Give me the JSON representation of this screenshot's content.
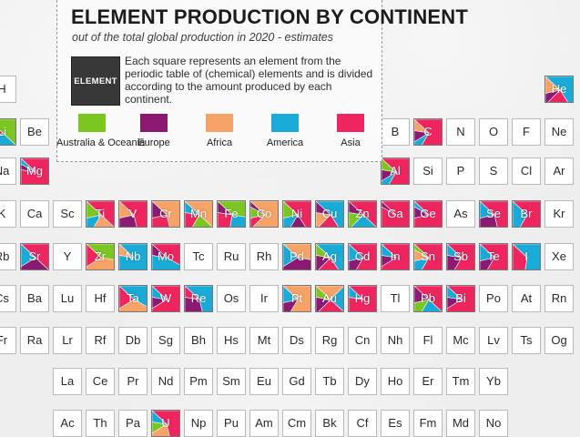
{
  "title": "ELEMENT PRODUCTION BY CONTINENT",
  "subtitle": "out of the total global production in 2020 - estimates",
  "legend": {
    "sample_label": "ELEMENT",
    "description": "Each square represents an element from the periodic table of (chemical) elements and is divided according to the amount produced by each continent.",
    "continents": [
      {
        "key": "oce",
        "name": "Australia & Oceania",
        "color": "#7bc621"
      },
      {
        "key": "eur",
        "name": "Europe",
        "color": "#8b1a73"
      },
      {
        "key": "afr",
        "name": "Africa",
        "color": "#f7a266"
      },
      {
        "key": "ame",
        "name": "America",
        "color": "#1aaad8"
      },
      {
        "key": "asi",
        "name": "Asia",
        "color": "#ef2560"
      }
    ]
  },
  "elements": [
    {
      "s": "H",
      "r": 1,
      "c": 1
    },
    {
      "s": "He",
      "r": 1,
      "c": 18,
      "shares": {
        "ame": 0.55,
        "asi": 0.2,
        "eur": 0.1,
        "afr": 0.15
      }
    },
    {
      "s": "Li",
      "r": 2,
      "c": 1,
      "shares": {
        "oce": 0.5,
        "ame": 0.3,
        "asi": 0.2
      }
    },
    {
      "s": "Be",
      "r": 2,
      "c": 2
    },
    {
      "s": "B",
      "r": 2,
      "c": 13
    },
    {
      "s": "C",
      "r": 2,
      "c": 14,
      "shares": {
        "asi": 0.7,
        "ame": 0.1,
        "eur": 0.1,
        "afr": 0.1
      }
    },
    {
      "s": "N",
      "r": 2,
      "c": 15
    },
    {
      "s": "O",
      "r": 2,
      "c": 16
    },
    {
      "s": "F",
      "r": 2,
      "c": 17
    },
    {
      "s": "Ne",
      "r": 2,
      "c": 18
    },
    {
      "s": "Na",
      "r": 3,
      "c": 1
    },
    {
      "s": "Mg",
      "r": 3,
      "c": 2,
      "shares": {
        "asi": 0.9,
        "eur": 0.05,
        "ame": 0.05
      }
    },
    {
      "s": "Al",
      "r": 3,
      "c": 13,
      "shares": {
        "asi": 0.7,
        "ame": 0.1,
        "eur": 0.1,
        "oce": 0.1
      }
    },
    {
      "s": "Si",
      "r": 3,
      "c": 14
    },
    {
      "s": "P",
      "r": 3,
      "c": 15
    },
    {
      "s": "S",
      "r": 3,
      "c": 16
    },
    {
      "s": "Cl",
      "r": 3,
      "c": 17
    },
    {
      "s": "Ar",
      "r": 3,
      "c": 18
    },
    {
      "s": "K",
      "r": 4,
      "c": 1
    },
    {
      "s": "Ca",
      "r": 4,
      "c": 2
    },
    {
      "s": "Sc",
      "r": 4,
      "c": 3
    },
    {
      "s": "Ti",
      "r": 4,
      "c": 4,
      "shares": {
        "asi": 0.5,
        "afr": 0.2,
        "ame": 0.15,
        "oce": 0.15
      }
    },
    {
      "s": "V",
      "r": 4,
      "c": 5,
      "shares": {
        "asi": 0.6,
        "eur": 0.25,
        "afr": 0.15
      }
    },
    {
      "s": "Cr",
      "r": 4,
      "c": 6,
      "shares": {
        "afr": 0.6,
        "asi": 0.25,
        "eur": 0.15
      }
    },
    {
      "s": "Mn",
      "r": 4,
      "c": 7,
      "shares": {
        "afr": 0.5,
        "oce": 0.2,
        "asi": 0.2,
        "ame": 0.1
      }
    },
    {
      "s": "Fe",
      "r": 4,
      "c": 8,
      "shares": {
        "oce": 0.4,
        "ame": 0.25,
        "asi": 0.25,
        "eur": 0.1
      }
    },
    {
      "s": "Co",
      "r": 4,
      "c": 9,
      "shares": {
        "afr": 0.75,
        "asi": 0.1,
        "oce": 0.1,
        "eur": 0.05
      }
    },
    {
      "s": "Ni",
      "r": 4,
      "c": 10,
      "shares": {
        "asi": 0.55,
        "eur": 0.15,
        "ame": 0.15,
        "oce": 0.15
      }
    },
    {
      "s": "Cu",
      "r": 4,
      "c": 11,
      "shares": {
        "ame": 0.55,
        "asi": 0.2,
        "afr": 0.15,
        "eur": 0.1
      }
    },
    {
      "s": "Zn",
      "r": 4,
      "c": 12,
      "shares": {
        "asi": 0.5,
        "ame": 0.25,
        "oce": 0.15,
        "eur": 0.1
      }
    },
    {
      "s": "Ga",
      "r": 4,
      "c": 13,
      "shares": {
        "asi": 0.95,
        "eur": 0.05
      }
    },
    {
      "s": "Ge",
      "r": 4,
      "c": 14,
      "shares": {
        "asi": 0.85,
        "eur": 0.1,
        "ame": 0.05
      }
    },
    {
      "s": "As",
      "r": 4,
      "c": 15
    },
    {
      "s": "Se",
      "r": 4,
      "c": 16,
      "shares": {
        "asi": 0.6,
        "eur": 0.25,
        "ame": 0.15
      }
    },
    {
      "s": "Br",
      "r": 4,
      "c": 17,
      "shares": {
        "asi": 0.7,
        "ame": 0.3
      }
    },
    {
      "s": "Kr",
      "r": 4,
      "c": 18
    },
    {
      "s": "Rb",
      "r": 5,
      "c": 1
    },
    {
      "s": "Sr",
      "r": 5,
      "c": 2,
      "shares": {
        "asi": 0.5,
        "eur": 0.3,
        "ame": 0.2
      }
    },
    {
      "s": "Y",
      "r": 5,
      "c": 3
    },
    {
      "s": "Zr",
      "r": 5,
      "c": 4,
      "shares": {
        "oce": 0.4,
        "afr": 0.4,
        "asi": 0.2
      }
    },
    {
      "s": "Nb",
      "r": 5,
      "c": 5,
      "shares": {
        "ame": 0.9,
        "afr": 0.1
      }
    },
    {
      "s": "Mo",
      "r": 5,
      "c": 6,
      "shares": {
        "asi": 0.45,
        "ame": 0.45,
        "eur": 0.1
      }
    },
    {
      "s": "Tc",
      "r": 5,
      "c": 7
    },
    {
      "s": "Ru",
      "r": 5,
      "c": 8
    },
    {
      "s": "Rh",
      "r": 5,
      "c": 9
    },
    {
      "s": "Pd",
      "r": 5,
      "c": 10,
      "shares": {
        "afr": 0.4,
        "eur": 0.4,
        "ame": 0.2
      }
    },
    {
      "s": "Ag",
      "r": 5,
      "c": 11,
      "shares": {
        "ame": 0.55,
        "asi": 0.2,
        "eur": 0.15,
        "oce": 0.1
      }
    },
    {
      "s": "Cd",
      "r": 5,
      "c": 12,
      "shares": {
        "asi": 0.7,
        "eur": 0.15,
        "ame": 0.15
      }
    },
    {
      "s": "In",
      "r": 5,
      "c": 13,
      "shares": {
        "asi": 0.8,
        "eur": 0.1,
        "ame": 0.1
      }
    },
    {
      "s": "Sn",
      "r": 5,
      "c": 14,
      "shares": {
        "asi": 0.7,
        "ame": 0.15,
        "afr": 0.1,
        "oce": 0.05
      }
    },
    {
      "s": "Sb",
      "r": 5,
      "c": 15,
      "shares": {
        "asi": 0.7,
        "eur": 0.2,
        "ame": 0.1
      }
    },
    {
      "s": "Te",
      "r": 5,
      "c": 16,
      "shares": {
        "asi": 0.7,
        "eur": 0.15,
        "ame": 0.15
      }
    },
    {
      "s": "I",
      "r": 5,
      "c": 17,
      "shares": {
        "ame": 0.65,
        "asi": 0.35
      }
    },
    {
      "s": "Xe",
      "r": 5,
      "c": 18
    },
    {
      "s": "Cs",
      "r": 6,
      "c": 1
    },
    {
      "s": "Ba",
      "r": 6,
      "c": 2
    },
    {
      "s": "Lu",
      "r": 6,
      "c": 3
    },
    {
      "s": "Hf",
      "r": 6,
      "c": 4
    },
    {
      "s": "Ta",
      "r": 6,
      "c": 5,
      "shares": {
        "ame": 0.45,
        "afr": 0.35,
        "asi": 0.2
      }
    },
    {
      "s": "W",
      "r": 6,
      "c": 6,
      "shares": {
        "asi": 0.8,
        "eur": 0.1,
        "ame": 0.1
      }
    },
    {
      "s": "Re",
      "r": 6,
      "c": 7,
      "shares": {
        "ame": 0.6,
        "eur": 0.3,
        "asi": 0.1
      }
    },
    {
      "s": "Os",
      "r": 6,
      "c": 8
    },
    {
      "s": "Ir",
      "r": 6,
      "c": 9
    },
    {
      "s": "Pt",
      "r": 6,
      "c": 10,
      "shares": {
        "afr": 0.7,
        "eur": 0.15,
        "ame": 0.15
      }
    },
    {
      "s": "Au",
      "r": 6,
      "c": 11,
      "shares": {
        "afr": 0.25,
        "ame": 0.25,
        "asi": 0.25,
        "eur": 0.15,
        "oce": 0.1
      }
    },
    {
      "s": "Hg",
      "r": 6,
      "c": 12,
      "shares": {
        "asi": 0.9,
        "ame": 0.1
      }
    },
    {
      "s": "Tl",
      "r": 6,
      "c": 13
    },
    {
      "s": "Pb",
      "r": 6,
      "c": 14,
      "shares": {
        "asi": 0.5,
        "ame": 0.2,
        "oce": 0.15,
        "eur": 0.15
      }
    },
    {
      "s": "Bi",
      "r": 6,
      "c": 15,
      "shares": {
        "asi": 0.8,
        "eur": 0.1,
        "ame": 0.1
      }
    },
    {
      "s": "Po",
      "r": 6,
      "c": 16
    },
    {
      "s": "At",
      "r": 6,
      "c": 17
    },
    {
      "s": "Rn",
      "r": 6,
      "c": 18
    },
    {
      "s": "Fr",
      "r": 7,
      "c": 1
    },
    {
      "s": "Ra",
      "r": 7,
      "c": 2
    },
    {
      "s": "Lr",
      "r": 7,
      "c": 3
    },
    {
      "s": "Rf",
      "r": 7,
      "c": 4
    },
    {
      "s": "Db",
      "r": 7,
      "c": 5
    },
    {
      "s": "Sg",
      "r": 7,
      "c": 6
    },
    {
      "s": "Bh",
      "r": 7,
      "c": 7
    },
    {
      "s": "Hs",
      "r": 7,
      "c": 8
    },
    {
      "s": "Mt",
      "r": 7,
      "c": 9
    },
    {
      "s": "Ds",
      "r": 7,
      "c": 10
    },
    {
      "s": "Rg",
      "r": 7,
      "c": 11
    },
    {
      "s": "Cn",
      "r": 7,
      "c": 12
    },
    {
      "s": "Nh",
      "r": 7,
      "c": 13
    },
    {
      "s": "Fl",
      "r": 7,
      "c": 14
    },
    {
      "s": "Mc",
      "r": 7,
      "c": 15
    },
    {
      "s": "Lv",
      "r": 7,
      "c": 16
    },
    {
      "s": "Ts",
      "r": 7,
      "c": 17
    },
    {
      "s": "Og",
      "r": 7,
      "c": 18
    },
    {
      "s": "La",
      "r": 8,
      "c": 3
    },
    {
      "s": "Ce",
      "r": 8,
      "c": 4
    },
    {
      "s": "Pr",
      "r": 8,
      "c": 5
    },
    {
      "s": "Nd",
      "r": 8,
      "c": 6
    },
    {
      "s": "Pm",
      "r": 8,
      "c": 7
    },
    {
      "s": "Sm",
      "r": 8,
      "c": 8
    },
    {
      "s": "Eu",
      "r": 8,
      "c": 9
    },
    {
      "s": "Gd",
      "r": 8,
      "c": 10
    },
    {
      "s": "Tb",
      "r": 8,
      "c": 11
    },
    {
      "s": "Dy",
      "r": 8,
      "c": 12
    },
    {
      "s": "Ho",
      "r": 8,
      "c": 13
    },
    {
      "s": "Er",
      "r": 8,
      "c": 14
    },
    {
      "s": "Tm",
      "r": 8,
      "c": 15
    },
    {
      "s": "Yb",
      "r": 8,
      "c": 16
    },
    {
      "s": "Ac",
      "r": 9,
      "c": 3
    },
    {
      "s": "Th",
      "r": 9,
      "c": 4
    },
    {
      "s": "Pa",
      "r": 9,
      "c": 5
    },
    {
      "s": "U",
      "r": 9,
      "c": 6,
      "shares": {
        "asi": 0.6,
        "afr": 0.2,
        "oce": 0.1,
        "ame": 0.1
      }
    },
    {
      "s": "Np",
      "r": 9,
      "c": 7
    },
    {
      "s": "Pu",
      "r": 9,
      "c": 8
    },
    {
      "s": "Am",
      "r": 9,
      "c": 9
    },
    {
      "s": "Cm",
      "r": 9,
      "c": 10
    },
    {
      "s": "Bk",
      "r": 9,
      "c": 11
    },
    {
      "s": "Cf",
      "r": 9,
      "c": 12
    },
    {
      "s": "Es",
      "r": 9,
      "c": 13
    },
    {
      "s": "Fm",
      "r": 9,
      "c": 14
    },
    {
      "s": "Md",
      "r": 9,
      "c": 15
    },
    {
      "s": "No",
      "r": 9,
      "c": 16
    }
  ]
}
